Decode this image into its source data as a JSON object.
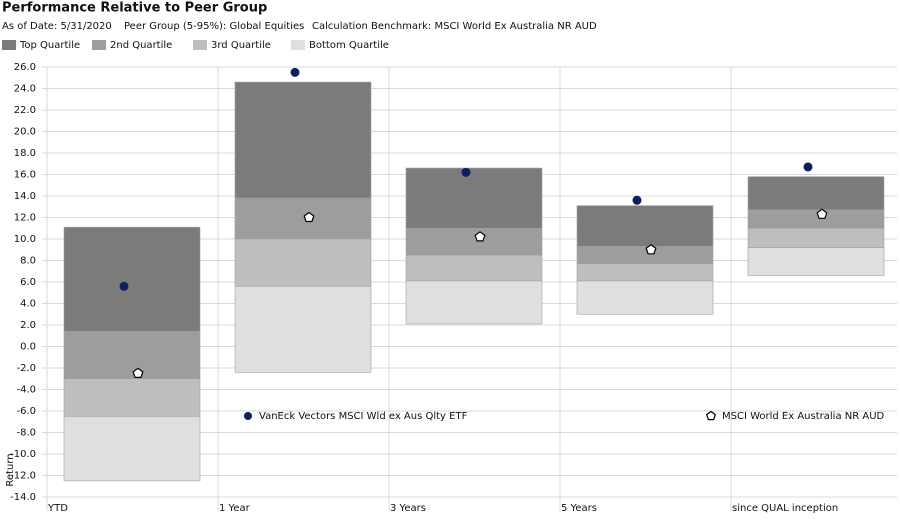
{
  "chart_data": {
    "type": "floating_bar",
    "title": "Performance Relative to Peer Group",
    "notes": [
      "As of Date: 5/31/2020",
      "Peer Group (5-95%): Global Equities",
      "Calculation Benchmark: MSCI World Ex Australia NR AUD"
    ],
    "y_label": "Return",
    "categories": [
      "YTD",
      "1 Year",
      "3 Years",
      "5 Years",
      "since QUAL inception"
    ],
    "quartiles": [
      {
        "name": "Top Quartile",
        "color": "#7b7b7b",
        "values": [
          [
            1.4,
            11.1
          ],
          [
            13.8,
            24.6
          ],
          [
            11.0,
            16.6
          ],
          [
            9.3,
            13.1
          ],
          [
            12.7,
            15.8
          ]
        ]
      },
      {
        "name": "2nd Quartile",
        "color": "#9d9d9d",
        "values": [
          [
            -3.0,
            1.4
          ],
          [
            10.0,
            13.8
          ],
          [
            8.5,
            11.0
          ],
          [
            7.7,
            9.3
          ],
          [
            11.0,
            12.7
          ]
        ]
      },
      {
        "name": "3rd Quartile",
        "color": "#bebebe",
        "values": [
          [
            -6.5,
            -3.0
          ],
          [
            5.6,
            10.0
          ],
          [
            6.1,
            8.5
          ],
          [
            6.1,
            7.7
          ],
          [
            9.2,
            11.0
          ]
        ]
      },
      {
        "name": "Bottom Quartile",
        "color": "#dfdfdf",
        "values": [
          [
            -12.5,
            -6.5
          ],
          [
            -2.4,
            5.6
          ],
          [
            2.1,
            6.1
          ],
          [
            3.0,
            6.1
          ],
          [
            6.6,
            9.2
          ]
        ]
      }
    ],
    "series": [
      {
        "name": "VanEck Vectors MSCI Wld ex Aus Qlty ETF",
        "color": "#0d1f5c",
        "marker": "circle",
        "values": [
          5.6,
          25.5,
          16.2,
          13.6,
          16.7
        ]
      },
      {
        "name": "MSCI World Ex Australia NR AUD",
        "color": "#ffffff",
        "marker": "pentagon",
        "values": [
          -2.5,
          12.0,
          10.2,
          9.0,
          12.3
        ]
      }
    ],
    "ylim": [
      -14,
      26
    ],
    "yticks": [
      {
        "value": -14,
        "label": "-14.0"
      },
      {
        "value": -12,
        "label": "-12.0"
      },
      {
        "value": -10,
        "label": "-10.0"
      },
      {
        "value": -8,
        "label": "-8.0"
      },
      {
        "value": -6,
        "label": "-6.0"
      },
      {
        "value": -4,
        "label": "-4.0"
      },
      {
        "value": -2,
        "label": "-2.0"
      },
      {
        "value": 0,
        "label": "0.0"
      },
      {
        "value": 2,
        "label": "2.0"
      },
      {
        "value": 4,
        "label": "4.0"
      },
      {
        "value": 6,
        "label": "6.0"
      },
      {
        "value": 8,
        "label": "8.0"
      },
      {
        "value": 10,
        "label": "10.0"
      },
      {
        "value": 12,
        "label": "12.0"
      },
      {
        "value": 14,
        "label": "14.0"
      },
      {
        "value": 16,
        "label": "16.0"
      },
      {
        "value": 18,
        "label": "18.0"
      },
      {
        "value": 20,
        "label": "20.0"
      },
      {
        "value": 22,
        "label": "22.0"
      },
      {
        "value": 24,
        "label": "24.0"
      },
      {
        "value": 26,
        "label": "26.0"
      }
    ],
    "grid": true
  }
}
